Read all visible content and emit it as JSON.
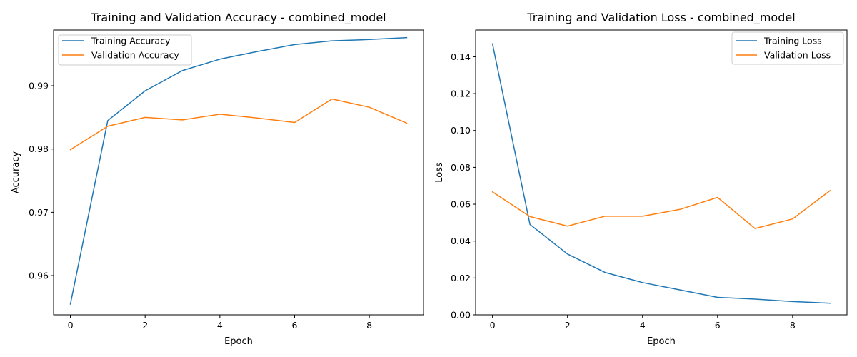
{
  "chart_data": [
    {
      "type": "line",
      "title": "Training and Validation Accuracy - combined_model",
      "xlabel": "Epoch",
      "ylabel": "Accuracy",
      "x": [
        0,
        1,
        2,
        3,
        4,
        5,
        6,
        7,
        8,
        9
      ],
      "xlim": [
        -0.45,
        9.45
      ],
      "ylim": [
        0.9538,
        0.9988
      ],
      "xticks": [
        0,
        2,
        4,
        6,
        8
      ],
      "yticks": [
        0.96,
        0.97,
        0.98,
        0.99
      ],
      "ytick_labels": [
        "0.96",
        "0.97",
        "0.98",
        "0.99"
      ],
      "grid": false,
      "legend_position": "upper-left",
      "series": [
        {
          "name": "Training Accuracy",
          "color": "#1f77b4",
          "values": [
            0.9555,
            0.9845,
            0.9892,
            0.9924,
            0.9942,
            0.9954,
            0.9965,
            0.9971,
            0.9973,
            0.9976
          ]
        },
        {
          "name": "Validation Accuracy",
          "color": "#ff7f0e",
          "values": [
            0.9799,
            0.9836,
            0.985,
            0.9846,
            0.9855,
            0.9849,
            0.9842,
            0.9879,
            0.9866,
            0.9841
          ]
        }
      ]
    },
    {
      "type": "line",
      "title": "Training and Validation Loss - combined_model",
      "xlabel": "Epoch",
      "ylabel": "Loss",
      "x": [
        0,
        1,
        2,
        3,
        4,
        5,
        6,
        7,
        8,
        9
      ],
      "xlim": [
        -0.45,
        9.45
      ],
      "ylim": [
        0.0,
        0.1545
      ],
      "xticks": [
        0,
        2,
        4,
        6,
        8
      ],
      "yticks": [
        0.0,
        0.02,
        0.04,
        0.06,
        0.08,
        0.1,
        0.12,
        0.14
      ],
      "ytick_labels": [
        "0.00",
        "0.02",
        "0.04",
        "0.06",
        "0.08",
        "0.10",
        "0.12",
        "0.14"
      ],
      "grid": false,
      "legend_position": "upper-right",
      "series": [
        {
          "name": "Training Loss",
          "color": "#1f77b4",
          "values": [
            0.147,
            0.049,
            0.033,
            0.023,
            0.0175,
            0.0135,
            0.0095,
            0.0085,
            0.0072,
            0.0063
          ]
        },
        {
          "name": "Validation Loss",
          "color": "#ff7f0e",
          "values": [
            0.0667,
            0.0533,
            0.0481,
            0.0535,
            0.0535,
            0.0572,
            0.0637,
            0.0468,
            0.052,
            0.0674
          ]
        }
      ]
    }
  ]
}
